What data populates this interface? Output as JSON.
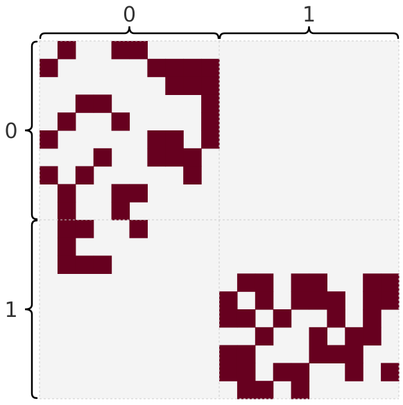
{
  "colors": {
    "filled": "#67001f",
    "empty": "#f4f4f4",
    "grid": "#cccccc",
    "brace": "#000000",
    "text": "#333333"
  },
  "chart_data": {
    "type": "heatmap",
    "title": "",
    "xlabel": "",
    "ylabel": "",
    "grid": true,
    "blocks": [
      {
        "label": "0",
        "size": 10
      },
      {
        "label": "1",
        "size": 10
      }
    ],
    "values": [
      [
        0,
        1,
        0,
        0,
        1,
        1,
        0,
        0,
        0,
        0,
        0,
        0,
        0,
        0,
        0,
        0,
        0,
        0,
        0,
        0
      ],
      [
        1,
        0,
        0,
        0,
        0,
        0,
        1,
        1,
        1,
        1,
        0,
        0,
        0,
        0,
        0,
        0,
        0,
        0,
        0,
        0
      ],
      [
        0,
        0,
        0,
        0,
        0,
        0,
        0,
        1,
        1,
        1,
        0,
        0,
        0,
        0,
        0,
        0,
        0,
        0,
        0,
        0
      ],
      [
        0,
        0,
        1,
        1,
        0,
        0,
        0,
        0,
        0,
        1,
        0,
        0,
        0,
        0,
        0,
        0,
        0,
        0,
        0,
        0
      ],
      [
        0,
        1,
        0,
        0,
        1,
        0,
        0,
        0,
        0,
        1,
        0,
        0,
        0,
        0,
        0,
        0,
        0,
        0,
        0,
        0
      ],
      [
        1,
        0,
        0,
        0,
        0,
        0,
        1,
        1,
        0,
        1,
        0,
        0,
        0,
        0,
        0,
        0,
        0,
        0,
        0,
        0
      ],
      [
        0,
        0,
        0,
        1,
        0,
        0,
        1,
        1,
        1,
        0,
        0,
        0,
        0,
        0,
        0,
        0,
        0,
        0,
        0,
        0
      ],
      [
        1,
        0,
        1,
        0,
        0,
        0,
        0,
        0,
        1,
        0,
        0,
        0,
        0,
        0,
        0,
        0,
        0,
        0,
        0,
        0
      ],
      [
        0,
        1,
        0,
        0,
        1,
        1,
        0,
        0,
        0,
        0,
        0,
        0,
        0,
        0,
        0,
        0,
        0,
        0,
        0,
        0
      ],
      [
        0,
        1,
        0,
        0,
        1,
        0,
        0,
        0,
        0,
        0,
        0,
        0,
        0,
        0,
        0,
        0,
        0,
        0,
        0,
        0
      ],
      [
        0,
        1,
        1,
        0,
        0,
        1,
        0,
        0,
        0,
        0,
        0,
        0,
        0,
        0,
        0,
        0,
        0,
        0,
        0,
        0
      ],
      [
        0,
        1,
        0,
        0,
        0,
        0,
        0,
        0,
        0,
        0,
        0,
        0,
        0,
        0,
        0,
        0,
        0,
        0,
        0,
        0
      ],
      [
        0,
        1,
        1,
        1,
        0,
        0,
        0,
        0,
        0,
        0,
        0,
        0,
        0,
        0,
        0,
        0,
        0,
        0,
        0,
        0
      ],
      [
        0,
        0,
        0,
        0,
        0,
        0,
        0,
        0,
        0,
        0,
        0,
        1,
        1,
        0,
        1,
        1,
        0,
        0,
        1,
        1
      ],
      [
        0,
        0,
        0,
        0,
        0,
        0,
        0,
        0,
        0,
        0,
        1,
        0,
        1,
        0,
        1,
        1,
        1,
        0,
        1,
        1
      ],
      [
        0,
        0,
        0,
        0,
        0,
        0,
        0,
        0,
        0,
        0,
        1,
        1,
        0,
        1,
        0,
        0,
        1,
        0,
        1,
        0
      ],
      [
        0,
        0,
        0,
        0,
        0,
        0,
        0,
        0,
        0,
        0,
        0,
        0,
        1,
        0,
        0,
        1,
        0,
        1,
        1,
        0
      ],
      [
        0,
        0,
        0,
        0,
        0,
        0,
        0,
        0,
        0,
        0,
        1,
        1,
        0,
        0,
        0,
        1,
        1,
        1,
        0,
        0
      ],
      [
        0,
        0,
        0,
        0,
        0,
        0,
        0,
        0,
        0,
        0,
        1,
        1,
        0,
        1,
        1,
        0,
        0,
        1,
        0,
        1
      ],
      [
        0,
        0,
        0,
        0,
        0,
        0,
        0,
        0,
        0,
        0,
        0,
        1,
        1,
        0,
        1,
        0,
        0,
        0,
        0,
        0
      ]
    ]
  }
}
